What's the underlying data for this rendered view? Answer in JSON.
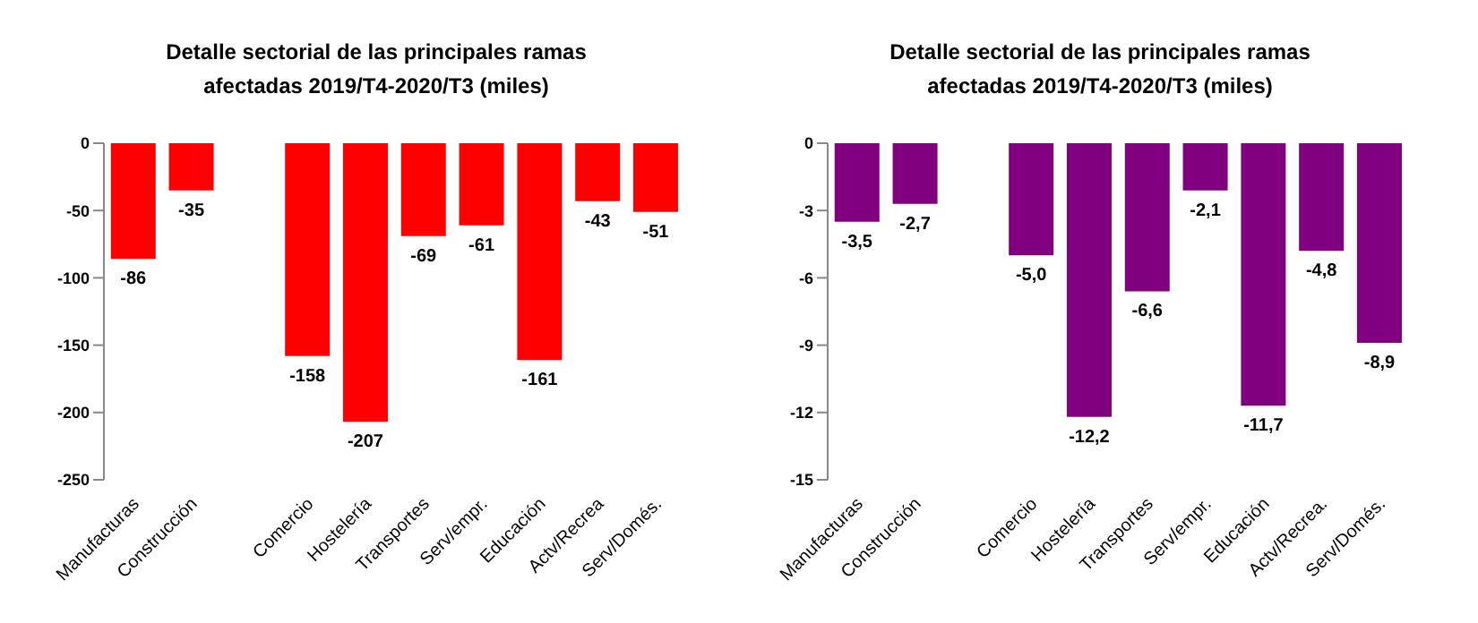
{
  "chart_data": [
    {
      "type": "bar",
      "title": "Detalle sectorial de las principales ramas afectadas 2019/T4-2020/T3 (miles)",
      "categories": [
        "Manufacturas",
        "Construcción",
        null,
        "Comercio",
        "Hostelería",
        "Transportes",
        "Serv/empr.",
        "Educación",
        "Actv/Recrea",
        "Serv/Domés."
      ],
      "values": [
        -86,
        -35,
        null,
        -158,
        -207,
        -69,
        -61,
        -161,
        -43,
        -51
      ],
      "color": "#ff0000",
      "ylim": [
        -250,
        0
      ],
      "yticks": [
        -250,
        -200,
        -150,
        -100,
        -50,
        0
      ],
      "grid": false,
      "legend": false,
      "data_labels": true
    },
    {
      "type": "bar",
      "title": "Detalle sectorial de las principales ramas afectadas 2019/T4-2020/T3 (miles)",
      "categories": [
        "Manufacturas",
        "Construcción",
        null,
        "Comercio",
        "Hostelería",
        "Transportes",
        "Serv/empr.",
        "Educación",
        "Actv/Recrea.",
        "Serv/Domés."
      ],
      "values": [
        -3.5,
        -2.7,
        null,
        -5.0,
        -12.2,
        -6.6,
        -2.1,
        -11.7,
        -4.8,
        -8.9
      ],
      "value_labels": [
        "-3,5",
        "-2,7",
        null,
        "-5,0",
        "-12,2",
        "-6,6",
        "-2,1",
        "-11,7",
        "-4,8",
        "-8,9"
      ],
      "color": "#800080",
      "ylim": [
        -15,
        0
      ],
      "yticks": [
        -15,
        -12,
        -9,
        -6,
        -3,
        0
      ],
      "grid": false,
      "legend": false
    }
  ]
}
